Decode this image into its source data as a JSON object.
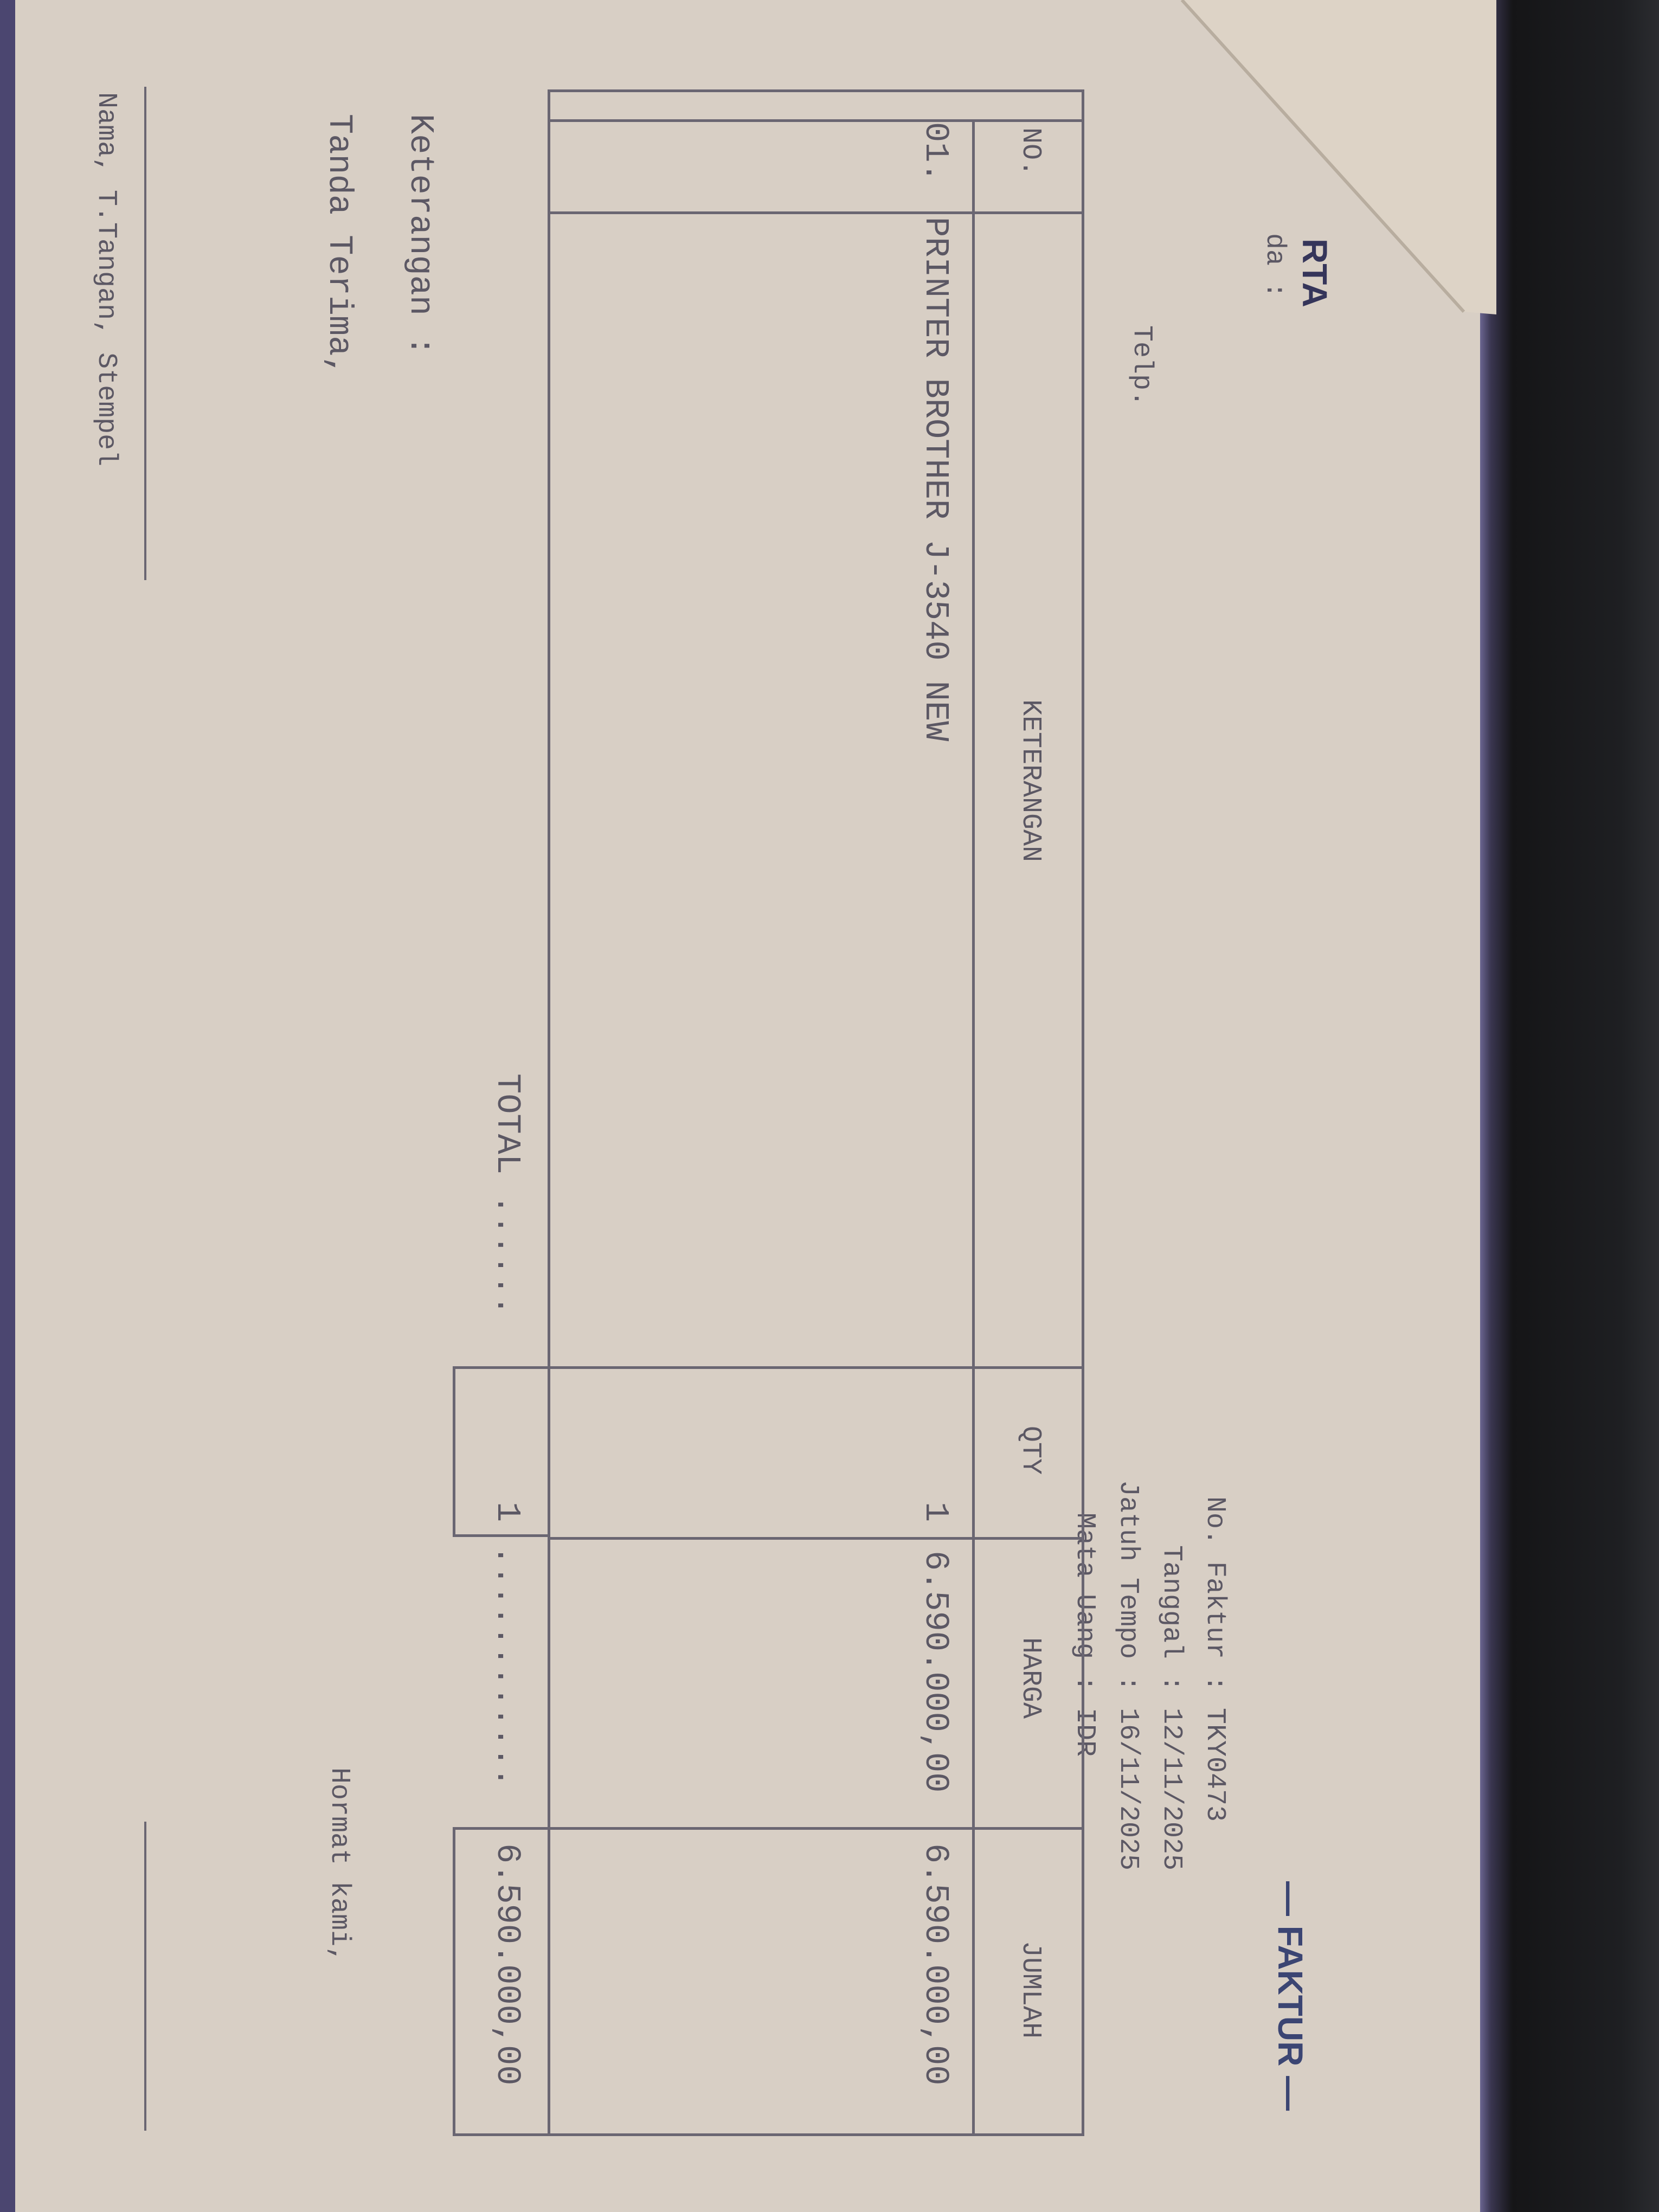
{
  "header": {
    "company_fragment": "RTA",
    "to_fragment": "da :",
    "telp_label": "Telp.",
    "title": "— FAKTUR —"
  },
  "invoice_info": [
    {
      "label": "No. Faktur",
      "value": "TKY0473"
    },
    {
      "label": "Tanggal",
      "value": "12/11/2025"
    },
    {
      "label": "Jatuh Tempo",
      "value": "16/11/2025"
    },
    {
      "label": "Mata Uang",
      "value": "IDR"
    }
  ],
  "table": {
    "columns": [
      "NO.",
      "KETERANGAN",
      "QTY",
      "HARGA",
      "JUMLAH"
    ],
    "rows": [
      {
        "no": "01.",
        "keterangan": "PRINTER BROTHER J-3540 NEW",
        "qty": "1",
        "harga": "6.590.000,00",
        "jumlah": "6.590.000,00"
      }
    ],
    "total_label": "TOTAL ......",
    "total_qty": "1",
    "total_dots": "............",
    "total_amount": "6.590.000,00"
  },
  "footer": {
    "keterangan_label": "Keterangan :",
    "tanda_terima": "Tanda Terima,",
    "hormat_kami": "Hormat kami,",
    "nama_ttd": "Nama, T.Tangan, Stempel"
  },
  "colors": {
    "paper": "#d8cfc5",
    "ink": "#5c5864",
    "title_ink": "#3b4573",
    "background": "#1e1f22"
  }
}
